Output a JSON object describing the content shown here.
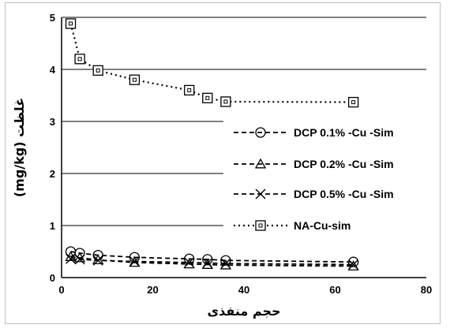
{
  "chart_data": {
    "type": "line",
    "xlabel": "حجم منفذی",
    "ylabel": "(mg/kg) غلظت",
    "xlim": [
      0,
      80
    ],
    "ylim": [
      0,
      5
    ],
    "xticks": [
      "0",
      "20",
      "40",
      "60",
      "80"
    ],
    "yticks": [
      "0",
      "1",
      "2",
      "3",
      "4",
      "5"
    ],
    "grid": "horizontal",
    "legend_position": "right",
    "series": [
      {
        "name": "DCP 0.1% -Cu -Sim",
        "marker": "circle",
        "line": "dashed",
        "x": [
          2,
          4,
          8,
          16,
          28,
          32,
          36,
          64
        ],
        "y": [
          0.5,
          0.47,
          0.43,
          0.39,
          0.36,
          0.35,
          0.33,
          0.3
        ]
      },
      {
        "name": "DCP 0.2% -Cu -Sim",
        "marker": "triangle",
        "line": "dashed",
        "x": [
          2,
          4,
          8,
          16,
          28,
          32,
          36,
          64
        ],
        "y": [
          0.4,
          0.38,
          0.34,
          0.29,
          0.26,
          0.25,
          0.24,
          0.22
        ]
      },
      {
        "name": "DCP 0.5% -Cu -Sim",
        "marker": "x",
        "line": "dashed",
        "x": [
          2,
          4,
          8,
          16,
          28,
          32,
          36,
          64
        ],
        "y": [
          0.36,
          0.35,
          0.33,
          0.31,
          0.29,
          0.28,
          0.27,
          0.25
        ]
      },
      {
        "name": "NA-Cu-sim",
        "marker": "square",
        "line": "dotted",
        "x": [
          2,
          4,
          8,
          16,
          28,
          32,
          36,
          64
        ],
        "y": [
          4.88,
          4.2,
          3.98,
          3.8,
          3.6,
          3.45,
          3.38,
          3.37
        ]
      }
    ]
  }
}
